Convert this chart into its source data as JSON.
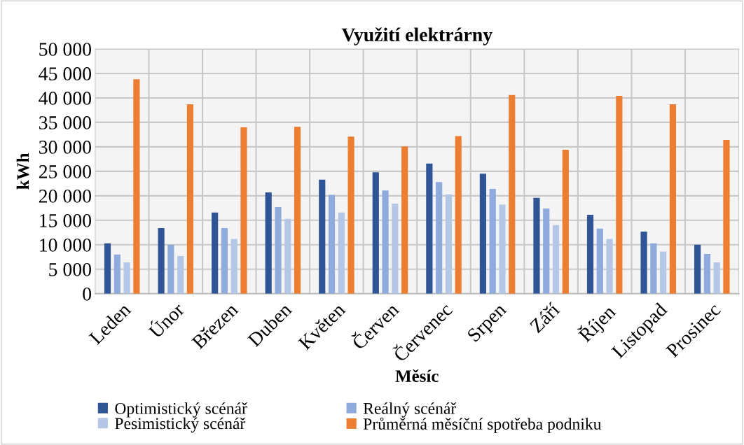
{
  "chart_data": {
    "type": "bar",
    "title": "Využití elektrárny",
    "xlabel": "Měsíc",
    "ylabel": "kWh",
    "categories": [
      "Leden",
      "Únor",
      "Březen",
      "Duben",
      "Květen",
      "Červen",
      "Červenec",
      "Srpen",
      "Září",
      "Říjen",
      "Listopad",
      "Prosinec"
    ],
    "series": [
      {
        "name": "Optimistický scénář",
        "color": "#2f5597",
        "values": [
          10300,
          13400,
          16600,
          20700,
          23300,
          24800,
          26600,
          24500,
          19600,
          16100,
          12700,
          10000
        ]
      },
      {
        "name": "Reálný scénář",
        "color": "#8faadc",
        "values": [
          8000,
          10000,
          13400,
          17700,
          20200,
          21100,
          22800,
          21400,
          17400,
          13300,
          10300,
          8100
        ]
      },
      {
        "name": "Pesimistický scénář",
        "color": "#b4c7e7",
        "values": [
          6400,
          7700,
          11200,
          15300,
          16600,
          18400,
          20300,
          18200,
          14000,
          11200,
          8600,
          6400
        ]
      },
      {
        "name": "Průměrná měsíční spotřeba podniku",
        "color": "#ed7d31",
        "values": [
          43800,
          38700,
          34000,
          34100,
          32100,
          30100,
          32200,
          40600,
          29400,
          40400,
          38700,
          31400
        ]
      }
    ],
    "ylim": [
      0,
      50000
    ],
    "yticks": [
      {
        "value": 0,
        "label": "0"
      },
      {
        "value": 5000,
        "label": "5 000"
      },
      {
        "value": 10000,
        "label": "10 000"
      },
      {
        "value": 15000,
        "label": "15 000"
      },
      {
        "value": 20000,
        "label": "20 000"
      },
      {
        "value": 25000,
        "label": "25 000"
      },
      {
        "value": 30000,
        "label": "30 000"
      },
      {
        "value": 35000,
        "label": "35 000"
      },
      {
        "value": 40000,
        "label": "40 000"
      },
      {
        "value": 45000,
        "label": "45 000"
      },
      {
        "value": 50000,
        "label": "50 000"
      }
    ],
    "grid": true,
    "legend": "bottom"
  }
}
